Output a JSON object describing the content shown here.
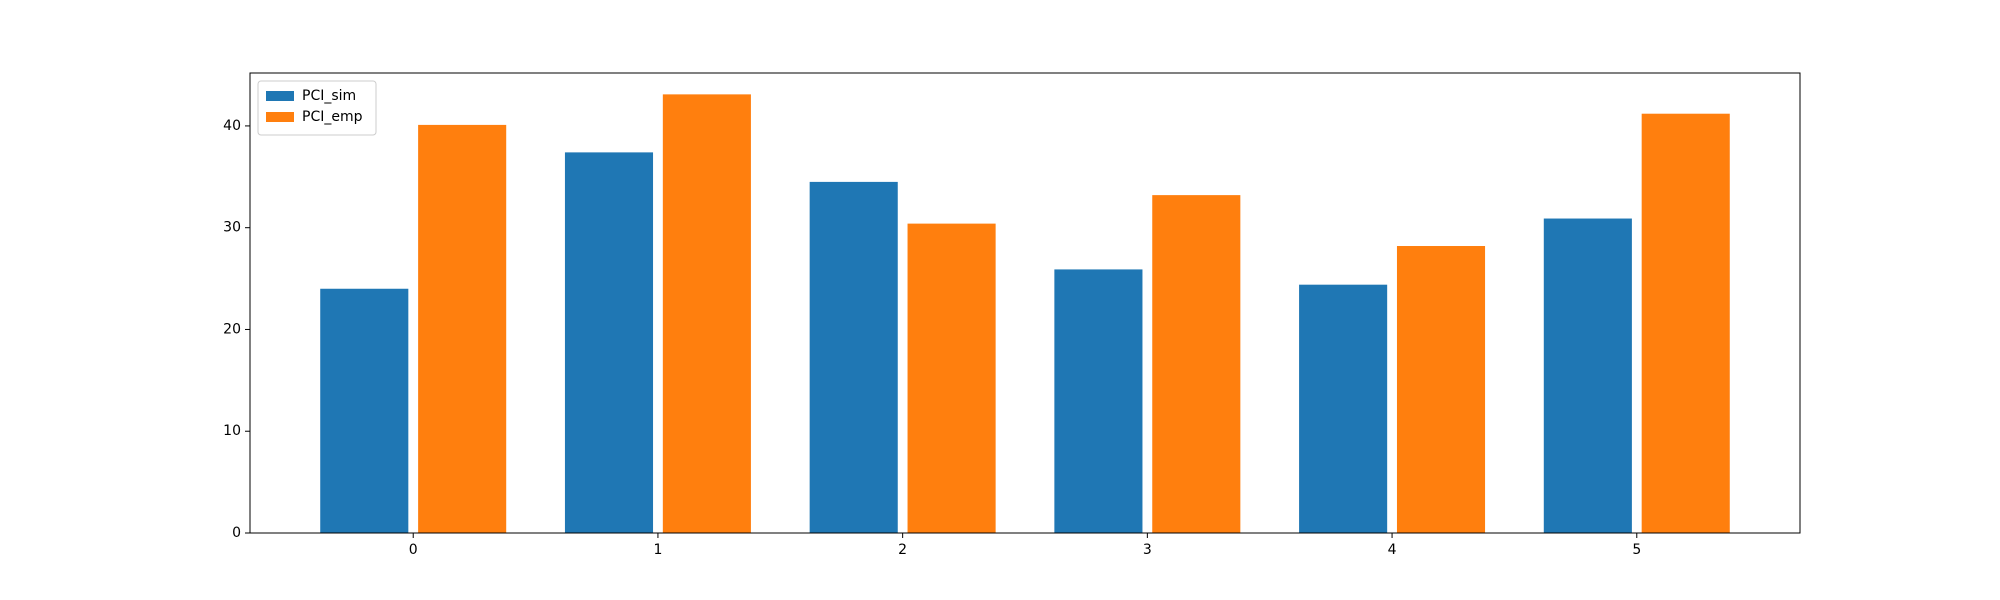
{
  "chart_data": {
    "type": "bar",
    "x": [
      0,
      1,
      2,
      3,
      4,
      5
    ],
    "series": [
      {
        "name": "PCI_sim",
        "color": "#1f77b4",
        "values": [
          24.0,
          37.4,
          34.5,
          25.9,
          24.4,
          30.9
        ]
      },
      {
        "name": "PCI_emp",
        "color": "#ff7f0e",
        "values": [
          40.1,
          43.1,
          30.4,
          33.2,
          28.2,
          41.2
        ]
      }
    ],
    "xlim": [
      -0.667,
      5.667
    ],
    "xticks": [
      0,
      1,
      2,
      3,
      4,
      5
    ],
    "ylim": [
      0,
      45.2
    ],
    "yticks": [
      0,
      10,
      20,
      30,
      40
    ],
    "legend": "upper left",
    "grid": false
  }
}
